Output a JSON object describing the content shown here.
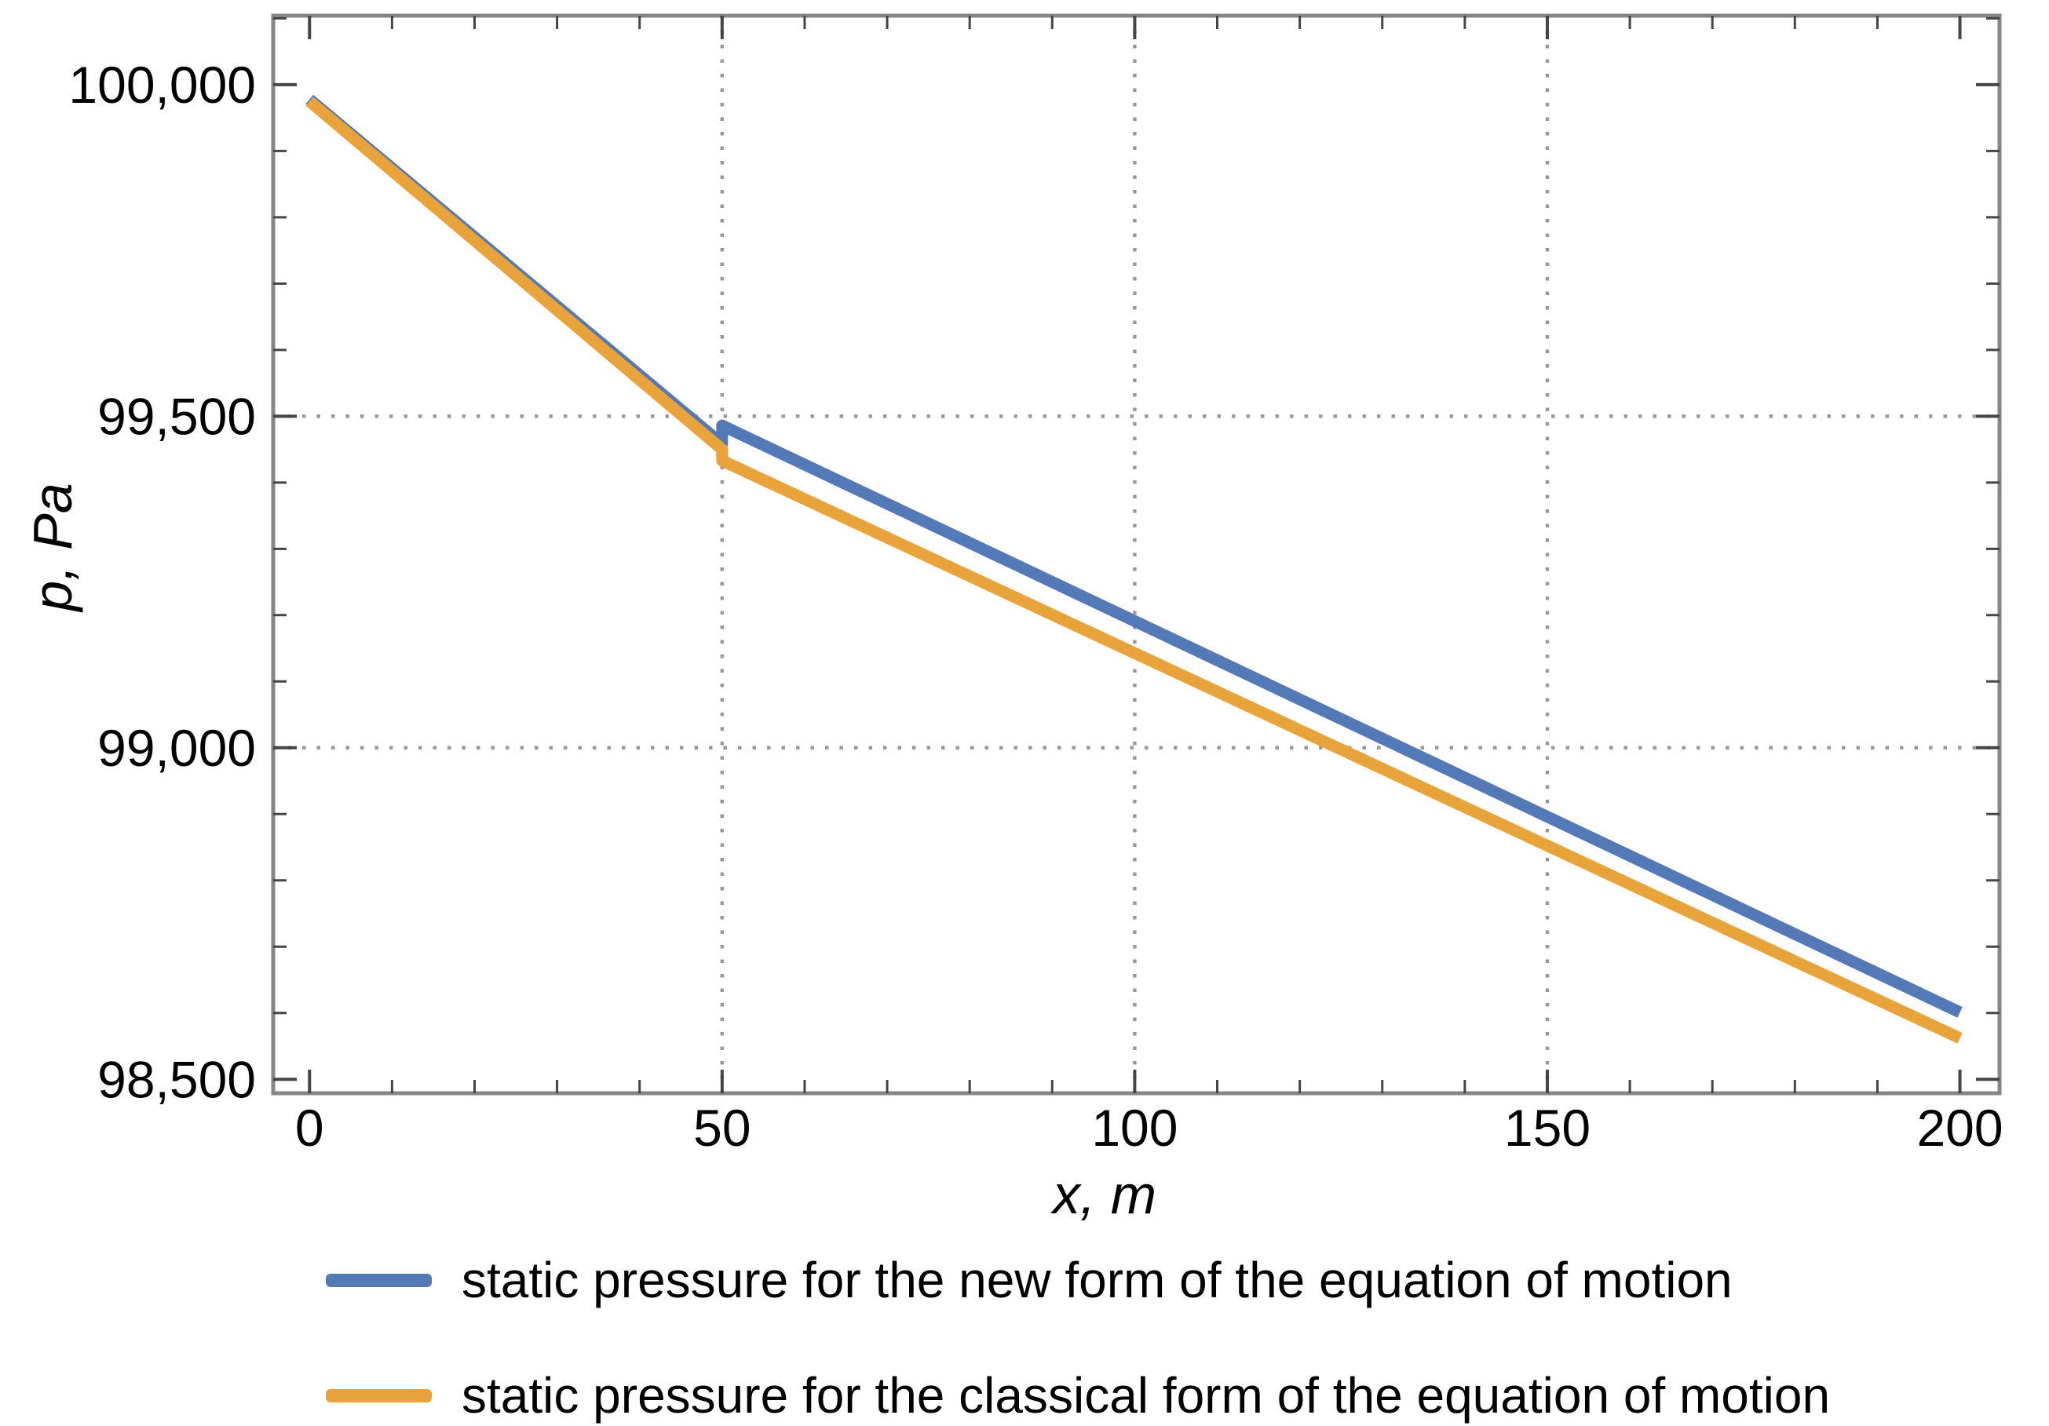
{
  "chart_data": {
    "type": "line",
    "title": "",
    "xlabel": "x, m",
    "ylabel": "p, Pa",
    "xlim": [
      -4.4,
      204.8
    ],
    "ylim": [
      98479,
      100104
    ],
    "x_major_ticks": [
      0,
      50,
      100,
      150,
      200
    ],
    "x_tick_labels": [
      "0",
      "50",
      "100",
      "150",
      "200"
    ],
    "x_minor_step": 10,
    "y_major_ticks": [
      98500,
      99000,
      99500,
      100000
    ],
    "y_tick_labels": [
      "98,500",
      "99,000",
      "99,500",
      "100,000"
    ],
    "y_minor_step": 100,
    "x_gridlines": [
      50,
      100,
      150
    ],
    "y_gridlines": [
      99500,
      99000
    ],
    "grid_on": true,
    "legend_position": "below-plot",
    "frame_color": "#868686",
    "tick_color": "#454545",
    "grid_color": "#999999",
    "text_color": "#000000",
    "series": [
      {
        "name": "static pressure for the new form of the equation of motion",
        "color": "#5379B7",
        "points": [
          [
            0,
            99978
          ],
          [
            50,
            99458
          ],
          [
            50,
            99486
          ],
          [
            200,
            98601
          ]
        ]
      },
      {
        "name": "static pressure for the classical form of the equation of motion",
        "color": "#E8A33A",
        "points": [
          [
            0,
            99975
          ],
          [
            50,
            99450
          ],
          [
            50,
            99433
          ],
          [
            200,
            98562
          ]
        ]
      }
    ]
  }
}
